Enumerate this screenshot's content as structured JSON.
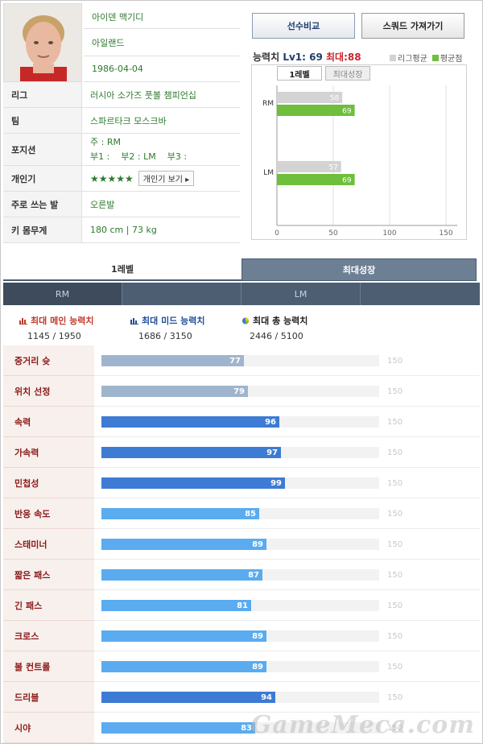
{
  "player": {
    "name": "아이덴 맥기디",
    "nationality": "아일랜드",
    "birth": "1986-04-04"
  },
  "info_rows": [
    {
      "label": "리그",
      "value": "러시아 소가즈 풋볼 챔피언십"
    },
    {
      "label": "팀",
      "value": "스파르타크 모스크바"
    },
    {
      "label": "포지션",
      "value_main": "주 : RM",
      "value_sub": "부1 :    부2 : LM    부3 :"
    },
    {
      "label": "개인기",
      "stars": "★★★★★",
      "button": "개인기 보기 ▸"
    },
    {
      "label": "주로 쓰는 발",
      "value": "오른발"
    },
    {
      "label": "키 몸무게",
      "value": "180 cm | 73 kg"
    }
  ],
  "buttons": {
    "compare": "선수비교",
    "squad": "스쿼드 가져가기"
  },
  "ability": {
    "title": "능력치",
    "lv1_label": "Lv1: 69",
    "max_label": "최대:88",
    "legend_league": "리그평균",
    "legend_avg": "평균점",
    "tab_lv1": "1레벨",
    "tab_max": "최대성장"
  },
  "colors": {
    "league": "#d3d3d3",
    "avg": "#6fbe3c",
    "bar_gray": "#9fb5cd",
    "bar_dark": "#3d7bd4",
    "bar_light": "#5aabef"
  },
  "chart_data": {
    "type": "bar",
    "categories": [
      "RM",
      "LM"
    ],
    "series": [
      {
        "name": "리그평균",
        "values": [
          58,
          57
        ]
      },
      {
        "name": "평균점",
        "values": [
          69,
          69
        ]
      }
    ],
    "xlim": [
      0,
      160
    ],
    "xticks": [
      0,
      50,
      100,
      150
    ]
  },
  "section_tabs": {
    "lv1": "1레벨",
    "max": "최대성장"
  },
  "position_tabs": [
    "RM",
    "",
    "LM",
    ""
  ],
  "summary": [
    {
      "title": "최대 메인 능력치",
      "value": "1145 / 1950",
      "color": "#c0392b"
    },
    {
      "title": "최대 미드 능력치",
      "value": "1686 / 3150",
      "color": "#1f4e99"
    },
    {
      "title": "최대 총 능력치",
      "value": "2446 / 5100",
      "color": "#222222"
    }
  ],
  "stat_max": 150,
  "stats": [
    {
      "label": "중거리 슛",
      "value": 77,
      "tone": "gray"
    },
    {
      "label": "위치 선정",
      "value": 79,
      "tone": "gray"
    },
    {
      "label": "속력",
      "value": 96,
      "tone": "dark"
    },
    {
      "label": "가속력",
      "value": 97,
      "tone": "dark"
    },
    {
      "label": "민첩성",
      "value": 99,
      "tone": "dark"
    },
    {
      "label": "반응 속도",
      "value": 85,
      "tone": "light"
    },
    {
      "label": "스태미너",
      "value": 89,
      "tone": "light"
    },
    {
      "label": "짧은 패스",
      "value": 87,
      "tone": "light"
    },
    {
      "label": "긴 패스",
      "value": 81,
      "tone": "light"
    },
    {
      "label": "크로스",
      "value": 89,
      "tone": "light"
    },
    {
      "label": "볼 컨트롤",
      "value": 89,
      "tone": "light"
    },
    {
      "label": "드리블",
      "value": 94,
      "tone": "dark"
    },
    {
      "label": "시야",
      "value": 83,
      "tone": "light"
    }
  ],
  "watermark": "GameMeca.com"
}
